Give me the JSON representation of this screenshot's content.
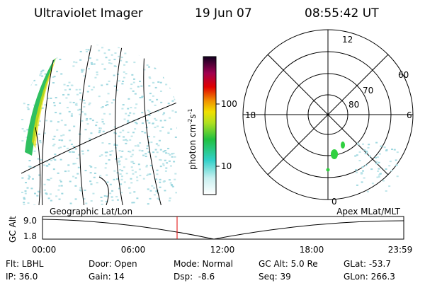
{
  "header": {
    "title": "Ultraviolet Imager",
    "date": "19 Jun 07",
    "time": "08:55:42 UT"
  },
  "colorbar": {
    "label": [
      "photon cm",
      "-2",
      "s",
      "-1"
    ],
    "ticks": [
      "100",
      "10"
    ]
  },
  "polar": {
    "hour_labels": [
      "12",
      "18",
      "6",
      "0"
    ],
    "lat_labels": [
      "60",
      "70",
      "80"
    ]
  },
  "timeline": {
    "left_label": "Geographic Lat/Lon",
    "right_label": "Apex MLat/MLT",
    "y_label": "GC Alt",
    "yticks": [
      "9.0",
      "1.8"
    ],
    "xticks": [
      "00:00",
      "06:00",
      "12:00",
      "18:00",
      "23:59"
    ]
  },
  "footer": {
    "rows": [
      [
        "Flt: LBHL",
        "Door: Open",
        "Mode: Normal",
        "GC Alt: 5.0 Re",
        "GLat: -53.7"
      ],
      [
        "IP: 36.0",
        "Gain: 14",
        "Dsp:  -8.6",
        "Seq: 39",
        "GLon: 266.3"
      ]
    ]
  }
}
